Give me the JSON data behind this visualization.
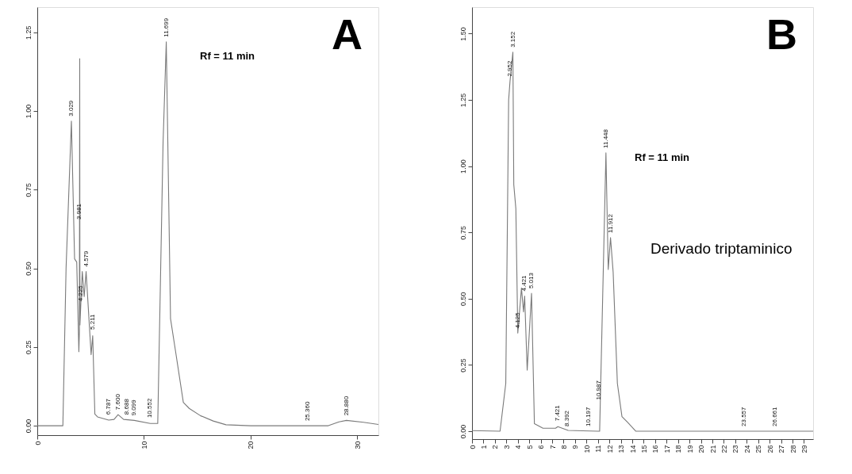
{
  "chart_data": [
    {
      "type": "line",
      "title": "A",
      "x": [
        0,
        2.4,
        2.7,
        3.2,
        3.5,
        3.7,
        3.9,
        3.95,
        3.98,
        4.0,
        4.22,
        4.4,
        4.58,
        5.05,
        5.2,
        5.4,
        5.65,
        6.7,
        7.2,
        7.58,
        8.1,
        9.1,
        10.6,
        11.3,
        11.8,
        12.1,
        12.5,
        13.0,
        13.7,
        14.25,
        15.3,
        16.5,
        17.7,
        20,
        27.3,
        28.3,
        29.0,
        30.6,
        32
      ],
      "series": [
        {
          "color": "#7a7a7a",
          "values": [
            0,
            0,
            0.5,
            0.968,
            0.53,
            0.52,
            0.235,
            0.3,
            1.166,
            0.32,
            0.49,
            0.41,
            0.49,
            0.226,
            0.286,
            0.037,
            0.028,
            0.018,
            0.02,
            0.035,
            0.02,
            0.017,
            0.007,
            0.007,
            0.9,
            1.22,
            0.34,
            0.23,
            0.074,
            0.055,
            0.032,
            0.015,
            0.003,
            0,
            0,
            0.012,
            0.017,
            0.011,
            0.004
          ]
        }
      ],
      "xlim": [
        0,
        32
      ],
      "ylim": [
        -0.03,
        1.33
      ],
      "xticks": [
        0,
        10,
        20,
        30
      ],
      "yticks": [
        {
          "value": 0,
          "label": "0.00"
        },
        {
          "value": 0.25,
          "label": "0.25"
        },
        {
          "value": 0.5,
          "label": "0.50"
        },
        {
          "value": 0.75,
          "label": "0.75"
        },
        {
          "value": 1,
          "label": "1.00"
        },
        {
          "value": 1.25,
          "label": "1.25"
        }
      ],
      "annotations": [
        {
          "text": "3.029",
          "x": 3.2,
          "y": 0.968
        },
        {
          "text": "3.981",
          "x": 3.98,
          "y": 0.64
        },
        {
          "text": "4.225",
          "x": 4.1,
          "y": 0.38
        },
        {
          "text": "4.579",
          "x": 4.58,
          "y": 0.49
        },
        {
          "text": "5.211",
          "x": 5.2,
          "y": 0.29
        },
        {
          "text": "6.787",
          "x": 6.7,
          "y": 0.02
        },
        {
          "text": "7.600",
          "x": 7.58,
          "y": 0.035
        },
        {
          "text": "8.688",
          "x": 8.4,
          "y": 0.02
        },
        {
          "text": "9.099",
          "x": 9.1,
          "y": 0.017
        },
        {
          "text": "10.552",
          "x": 10.6,
          "y": 0.01
        },
        {
          "text": "11.699",
          "x": 12.1,
          "y": 1.22
        },
        {
          "text": "25.360",
          "x": 25.4,
          "y": 0.0
        },
        {
          "text": "28.880",
          "x": 29.0,
          "y": 0.017
        },
        "Rf = 11 min"
      ]
    },
    {
      "type": "line",
      "title": "B",
      "x": [
        0,
        2.45,
        2.95,
        3.2,
        3.32,
        3.57,
        3.65,
        3.83,
        4.0,
        4.32,
        4.5,
        4.6,
        4.82,
        5.2,
        5.45,
        6.2,
        7.3,
        7.5,
        8.4,
        10.95,
        11.15,
        11.7,
        11.9,
        12.1,
        12.33,
        12.7,
        13.1,
        13.6,
        14.3,
        15.45,
        19.2,
        29.8
      ],
      "series": [
        {
          "color": "#7a7a7a",
          "values": [
            0.002,
            0,
            0.18,
            1.25,
            1.32,
            1.43,
            0.93,
            0.84,
            0.37,
            0.54,
            0.45,
            0.51,
            0.23,
            0.52,
            0.028,
            0.011,
            0.011,
            0.017,
            0.003,
            0,
            0,
            1.05,
            0.61,
            0.73,
            0.6,
            0.18,
            0.055,
            0.033,
            0.0,
            0,
            0,
            0
          ]
        }
      ],
      "xlim": [
        0,
        29.8
      ],
      "ylim": [
        -0.03,
        1.6
      ],
      "xticks": [
        0,
        1,
        2,
        3,
        4,
        5,
        6,
        7,
        8,
        9,
        10,
        11,
        12,
        13,
        14,
        15,
        16,
        17,
        18,
        19,
        20,
        21,
        22,
        23,
        24,
        25,
        26,
        27,
        28,
        29
      ],
      "yticks": [
        {
          "value": 0,
          "label": "0.00"
        },
        {
          "value": 0.25,
          "label": "0.25"
        },
        {
          "value": 0.5,
          "label": "0.50"
        },
        {
          "value": 0.75,
          "label": "0.75"
        },
        {
          "value": 1,
          "label": "1.00"
        },
        {
          "value": 1.25,
          "label": "1.25"
        },
        {
          "value": 1.5,
          "label": "1.50"
        }
      ],
      "annotations": [
        {
          "text": "2.952",
          "x": 3.32,
          "y": 1.32
        },
        {
          "text": "3.152",
          "x": 3.57,
          "y": 1.43
        },
        {
          "text": "4.125",
          "x": 4.0,
          "y": 0.37
        },
        {
          "text": "4.421",
          "x": 4.6,
          "y": 0.51
        },
        {
          "text": "5.013",
          "x": 5.2,
          "y": 0.52
        },
        {
          "text": "7.421",
          "x": 7.45,
          "y": 0.02
        },
        {
          "text": "8.392",
          "x": 8.3,
          "y": 0.0
        },
        {
          "text": "10.197",
          "x": 10.2,
          "y": 0.0
        },
        {
          "text": "10.987",
          "x": 11.1,
          "y": 0.1
        },
        {
          "text": "11.448",
          "x": 11.7,
          "y": 1.05
        },
        {
          "text": "11.912",
          "x": 12.1,
          "y": 0.73
        },
        {
          "text": "23.557",
          "x": 23.8,
          "y": 0.0
        },
        {
          "text": "26.661",
          "x": 26.5,
          "y": 0.0
        },
        "Rf = 11 min",
        "Derivado triptaminico"
      ]
    }
  ]
}
